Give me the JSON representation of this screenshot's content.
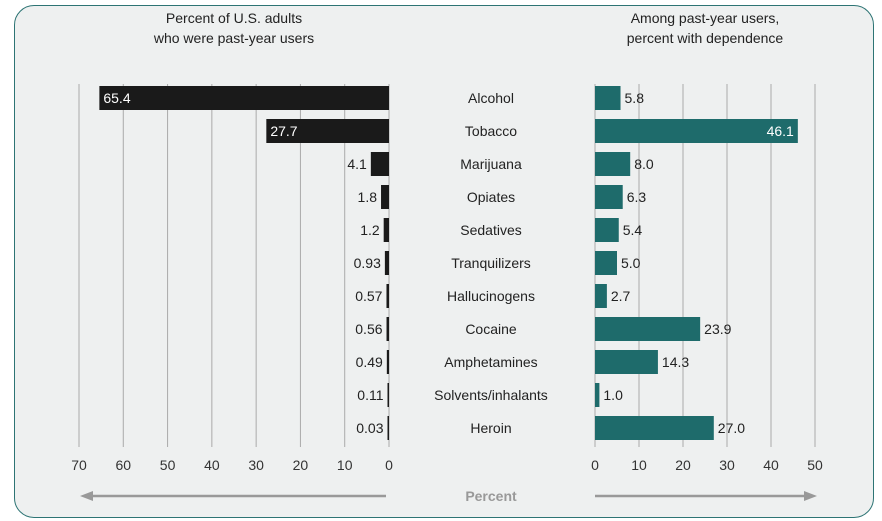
{
  "chart_data": [
    {
      "type": "bar",
      "orientation": "horizontal",
      "direction": "right-to-left",
      "title_lines": [
        "Percent of U.S. adults",
        "who were past-year users"
      ],
      "categories": [
        "Alcohol",
        "Tobacco",
        "Marijuana",
        "Opiates",
        "Sedatives",
        "Tranquilizers",
        "Hallucinogens",
        "Cocaine",
        "Amphetamines",
        "Solvents/inhalants",
        "Heroin"
      ],
      "values": [
        65.4,
        27.7,
        4.1,
        1.8,
        1.2,
        0.93,
        0.57,
        0.56,
        0.49,
        0.11,
        0.03
      ],
      "value_labels": [
        "65.4",
        "27.7",
        "4.1",
        "1.8",
        "1.2",
        "0.93",
        "0.57",
        "0.56",
        "0.49",
        "0.11",
        "0.03"
      ],
      "xlim": [
        0,
        70
      ],
      "ticks": [
        70,
        60,
        50,
        40,
        30,
        20,
        10,
        0
      ],
      "grid": true,
      "bar_color": "#1a1a1a"
    },
    {
      "type": "bar",
      "orientation": "horizontal",
      "direction": "left-to-right",
      "title_lines": [
        "Among past-year users,",
        "percent with dependence"
      ],
      "categories": [
        "Alcohol",
        "Tobacco",
        "Marijuana",
        "Opiates",
        "Sedatives",
        "Tranquilizers",
        "Hallucinogens",
        "Cocaine",
        "Amphetamines",
        "Solvents/inhalants",
        "Heroin"
      ],
      "values": [
        5.8,
        46.1,
        8.0,
        6.3,
        5.4,
        5.0,
        2.7,
        23.9,
        14.3,
        1.0,
        27.0
      ],
      "value_labels": [
        "5.8",
        "46.1",
        "8.0",
        "6.3",
        "5.4",
        "5.0",
        "2.7",
        "23.9",
        "14.3",
        "1.0",
        "27.0"
      ],
      "xlim": [
        0,
        50
      ],
      "ticks": [
        0,
        10,
        20,
        30,
        40,
        50
      ],
      "grid": true,
      "bar_color": "#1e6b6b"
    }
  ],
  "shared_xlabel": "Percent",
  "colors": {
    "panel_bg": "#eef0f0",
    "panel_border": "#2d7474",
    "grid": "#aaaaaa",
    "arrow": "#999999"
  }
}
